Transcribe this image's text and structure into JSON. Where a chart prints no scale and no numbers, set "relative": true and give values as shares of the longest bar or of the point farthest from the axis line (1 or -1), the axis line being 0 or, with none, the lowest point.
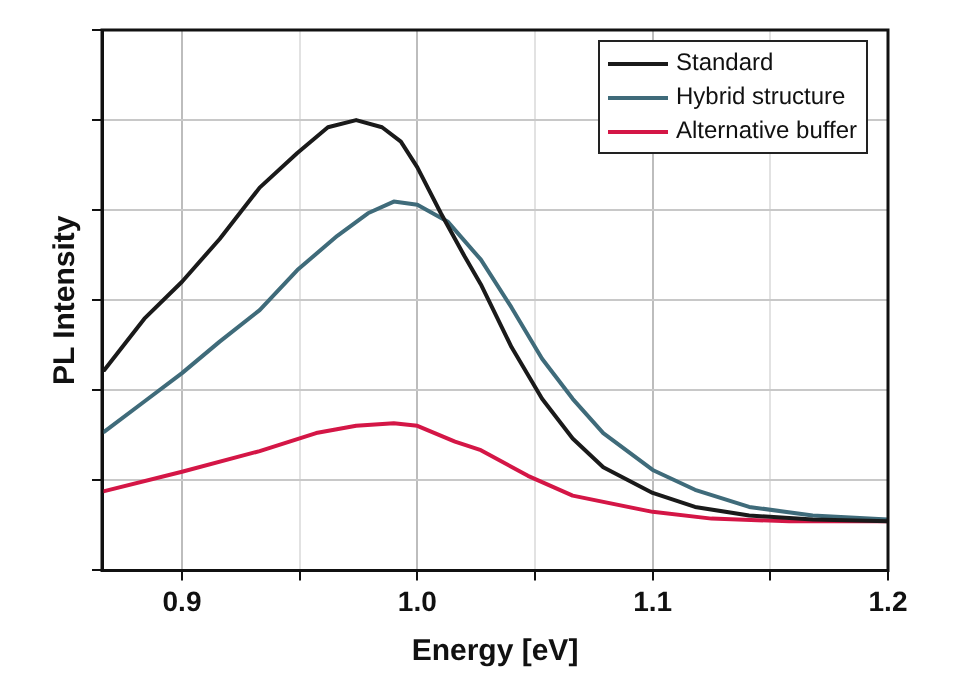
{
  "chart_data": {
    "type": "line",
    "xlabel": "Energy [eV]",
    "ylabel": "PL Intensity",
    "relative": true,
    "xlim": [
      0.866,
      1.2
    ],
    "xticks": [
      {
        "value": 0.9,
        "label": "0.9"
      },
      {
        "value": 0.95,
        "label": null
      },
      {
        "value": 1,
        "label": "1.0"
      },
      {
        "value": 1.05,
        "label": null
      },
      {
        "value": 1.1,
        "label": "1.1"
      },
      {
        "value": 1.15,
        "label": null
      },
      {
        "value": 1.2,
        "label": "1.2"
      }
    ],
    "grid": true,
    "legend": "top right",
    "marker": "none",
    "line_style": "solid",
    "tick_labels": "x",
    "series": [
      {
        "name": "Standard",
        "color": "#1a1a1a",
        "x": [
          0.867,
          0.884,
          0.9,
          0.916,
          0.933,
          0.949,
          0.962,
          0.974,
          0.985,
          0.993,
          1.0,
          1.01,
          1.02,
          1.027,
          1.04,
          1.053,
          1.066,
          1.079,
          1.1,
          1.118,
          1.141,
          1.168,
          1.2
        ],
        "values": [
          0.445,
          0.559,
          0.641,
          0.736,
          0.85,
          0.927,
          0.984,
          1.0,
          0.984,
          0.952,
          0.895,
          0.793,
          0.698,
          0.635,
          0.496,
          0.381,
          0.293,
          0.229,
          0.172,
          0.141,
          0.122,
          0.113,
          0.109
        ]
      },
      {
        "name": "Hybrid structure",
        "color": "#3f6b7a",
        "x": [
          0.867,
          0.884,
          0.9,
          0.916,
          0.933,
          0.949,
          0.966,
          0.979,
          0.99,
          1.0,
          1.013,
          1.027,
          1.04,
          1.053,
          1.066,
          1.079,
          1.1,
          1.118,
          1.141,
          1.168,
          1.2
        ],
        "values": [
          0.308,
          0.375,
          0.438,
          0.508,
          0.578,
          0.667,
          0.743,
          0.793,
          0.819,
          0.812,
          0.774,
          0.69,
          0.584,
          0.47,
          0.381,
          0.305,
          0.223,
          0.179,
          0.141,
          0.122,
          0.113
        ]
      },
      {
        "name": "Alternative buffer",
        "color": "#d41646",
        "x": [
          0.867,
          0.9,
          0.933,
          0.957,
          0.974,
          0.99,
          1.0,
          1.016,
          1.027,
          1.047,
          1.066,
          1.1,
          1.125,
          1.158,
          1.2
        ],
        "values": [
          0.176,
          0.219,
          0.265,
          0.305,
          0.321,
          0.327,
          0.321,
          0.286,
          0.267,
          0.21,
          0.166,
          0.13,
          0.115,
          0.109,
          0.109
        ]
      }
    ]
  }
}
